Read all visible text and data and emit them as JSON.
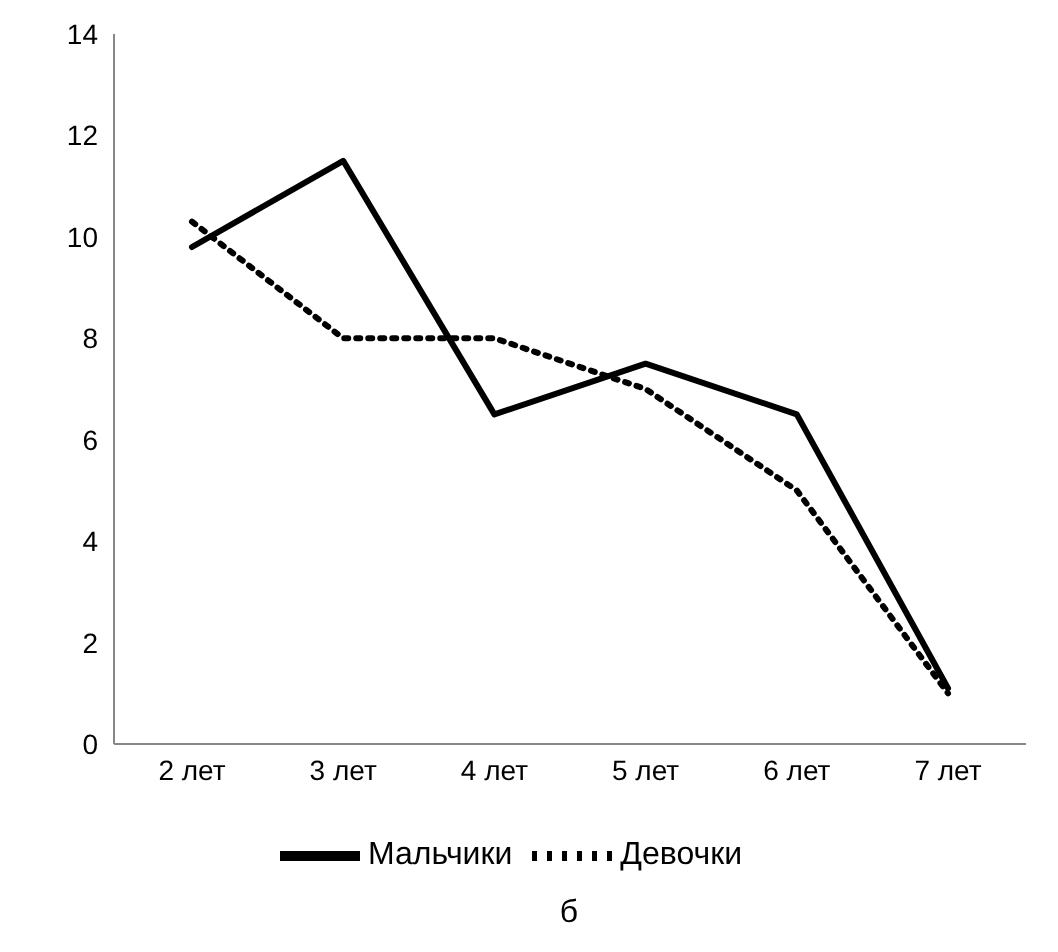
{
  "chart_data": {
    "type": "line",
    "categories": [
      "2 лет",
      "3 лет",
      "4 лет",
      "5 лет",
      "6 лет",
      "7 лет"
    ],
    "series": [
      {
        "name": "Мальчики",
        "color": "#000000",
        "line_style": "solid",
        "values": [
          9.8,
          11.5,
          6.5,
          7.5,
          6.5,
          1.1
        ]
      },
      {
        "name": "Девочки",
        "color": "#000000",
        "line_style": "dotted",
        "values": [
          10.3,
          8,
          8,
          7,
          5,
          1
        ]
      }
    ],
    "ylim": [
      0,
      14
    ],
    "yticks": [
      0,
      2,
      4,
      6,
      8,
      10,
      12,
      14
    ],
    "legend": "bottom",
    "marker": "none",
    "annotations": [
      "б"
    ]
  }
}
